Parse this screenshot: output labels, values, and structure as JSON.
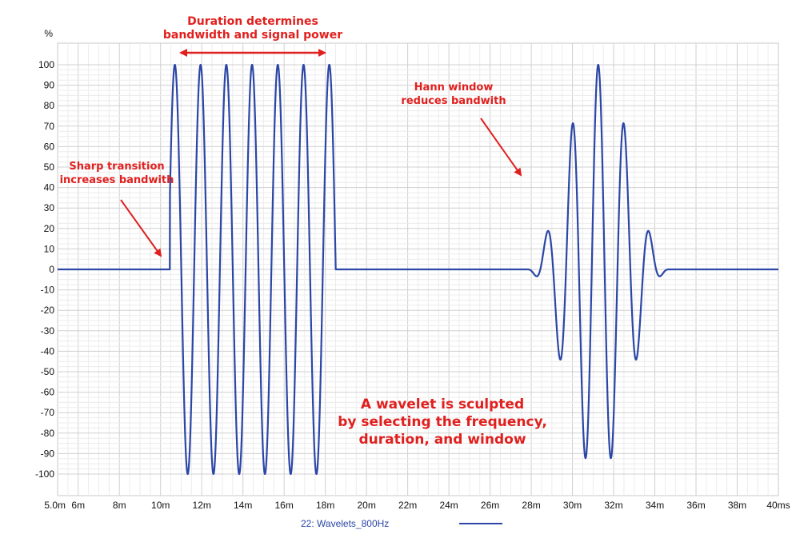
{
  "chart_data": {
    "type": "line",
    "y_unit_label": "%",
    "xlim_ms": [
      5.0,
      40.0
    ],
    "ylim": [
      -100,
      100
    ],
    "y_ticks": [
      100,
      90,
      80,
      70,
      60,
      50,
      40,
      30,
      20,
      10,
      0,
      -10,
      -20,
      -30,
      -40,
      -50,
      -60,
      -70,
      -80,
      -90,
      -100
    ],
    "x_ticks": [
      {
        "value": 5.0,
        "label": "5.0m"
      },
      {
        "value": 6,
        "label": "6m"
      },
      {
        "value": 8,
        "label": "8m"
      },
      {
        "value": 10,
        "label": "10m"
      },
      {
        "value": 12,
        "label": "12m"
      },
      {
        "value": 14,
        "label": "14m"
      },
      {
        "value": 16,
        "label": "16m"
      },
      {
        "value": 18,
        "label": "18m"
      },
      {
        "value": 20,
        "label": "20m"
      },
      {
        "value": 22,
        "label": "22m"
      },
      {
        "value": 24,
        "label": "24m"
      },
      {
        "value": 26,
        "label": "26m"
      },
      {
        "value": 28,
        "label": "28m"
      },
      {
        "value": 30,
        "label": "30m"
      },
      {
        "value": 32,
        "label": "32m"
      },
      {
        "value": 34,
        "label": "34m"
      },
      {
        "value": 36,
        "label": "36m"
      },
      {
        "value": 38,
        "label": "38m"
      },
      {
        "value": 40,
        "label": "40ms"
      }
    ],
    "grid": true,
    "legend_position": "bottom-center",
    "series": [
      {
        "name": "22: Wavelets_800Hz",
        "color": "#2b46a6",
        "segments": [
          {
            "window": "rectangular",
            "start_ms": 10.45,
            "end_ms": 18.5,
            "frequency_hz": 800,
            "peak": 100
          },
          {
            "window": "hann",
            "start_ms": 27.8,
            "end_ms": 34.7,
            "frequency_hz": 800,
            "peak": 100
          }
        ]
      }
    ],
    "annotations": [
      {
        "name": "duration",
        "lines": [
          "Duration determines",
          "bandwidth and signal power"
        ]
      },
      {
        "name": "hann",
        "lines": [
          "Hann window",
          "reduces bandwith"
        ]
      },
      {
        "name": "sharp",
        "lines": [
          "Sharp transition",
          "increases bandwith"
        ]
      },
      {
        "name": "summary",
        "lines": [
          "A wavelet is sculpted",
          "by selecting the frequency,",
          "duration, and window"
        ]
      }
    ],
    "annotation_color": "#e0201e"
  }
}
